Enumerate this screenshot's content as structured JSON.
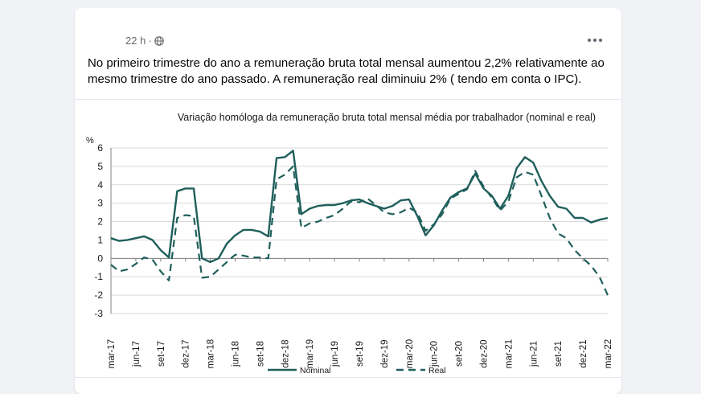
{
  "post": {
    "time": "22 h",
    "separator": "·",
    "privacy_icon": "globe-icon",
    "more_icon": "more-options-icon",
    "text": "No primeiro trimestre do ano a remuneração bruta total mensal aumentou 2,2% relativamente ao mesmo trimestre do ano passado. A remuneração real diminuiu 2% ( tendo em conta o IPC)."
  },
  "colors": {
    "series": "#1f5f5b",
    "grid": "#d9d9d9",
    "text": "#1a1a1a",
    "meta": "#65676b"
  },
  "chart_data": {
    "type": "line",
    "title": "Variação homóloga da remuneração bruta total mensal média por trabalhador (nominal e real)",
    "ylabel": "%",
    "xlabel": "",
    "ylim": [
      -3,
      6
    ],
    "yticks": [
      "6",
      "5",
      "4",
      "3",
      "2",
      "1",
      "0",
      "-1",
      "-2",
      "-3"
    ],
    "grid": true,
    "legend_position": "bottom",
    "x_tick_labels": [
      "mar-17",
      "jun-17",
      "set-17",
      "dez-17",
      "mar-18",
      "jun-18",
      "set-18",
      "dez-18",
      "mar-19",
      "jun-19",
      "set-19",
      "dez-19",
      "mar-20",
      "jun-20",
      "set-20",
      "dez-20",
      "mar-21",
      "jun-21",
      "set-21",
      "dez-21",
      "mar-22"
    ],
    "x": [
      "mar-17",
      "abr-17",
      "mai-17",
      "jun-17",
      "jul-17",
      "ago-17",
      "set-17",
      "out-17",
      "nov-17",
      "dez-17",
      "jan-18",
      "fev-18",
      "mar-18",
      "abr-18",
      "mai-18",
      "jun-18",
      "jul-18",
      "ago-18",
      "set-18",
      "out-18",
      "nov-18",
      "dez-18",
      "jan-19",
      "fev-19",
      "mar-19",
      "abr-19",
      "mai-19",
      "jun-19",
      "jul-19",
      "ago-19",
      "set-19",
      "out-19",
      "nov-19",
      "dez-19",
      "jan-20",
      "fev-20",
      "mar-20",
      "abr-20",
      "mai-20",
      "jun-20",
      "jul-20",
      "ago-20",
      "set-20",
      "out-20",
      "nov-20",
      "dez-20",
      "jan-21",
      "fev-21",
      "mar-21",
      "abr-21",
      "mai-21",
      "jun-21",
      "jul-21",
      "ago-21",
      "set-21",
      "out-21",
      "nov-21",
      "dez-21",
      "jan-22",
      "fev-22",
      "mar-22"
    ],
    "series": [
      {
        "name": "Nominal",
        "style": "solid",
        "values": [
          1.1,
          0.95,
          1.0,
          1.1,
          1.2,
          1.0,
          0.45,
          0.05,
          3.65,
          3.8,
          3.8,
          0.0,
          -0.2,
          0.0,
          0.8,
          1.25,
          1.55,
          1.55,
          1.45,
          1.2,
          5.45,
          5.5,
          5.85,
          2.4,
          2.7,
          2.85,
          2.9,
          2.9,
          3.0,
          3.15,
          3.2,
          3.0,
          2.85,
          2.7,
          2.85,
          3.15,
          3.2,
          2.3,
          1.25,
          1.8,
          2.6,
          3.3,
          3.6,
          3.8,
          4.6,
          3.8,
          3.4,
          2.7,
          3.4,
          4.9,
          5.5,
          5.2,
          4.2,
          3.4,
          2.8,
          2.7,
          2.2,
          2.2,
          1.95,
          2.1,
          2.2
        ]
      },
      {
        "name": "Real",
        "style": "dashed",
        "values": [
          -0.35,
          -0.7,
          -0.6,
          -0.3,
          0.05,
          -0.05,
          -0.7,
          -1.2,
          2.2,
          2.35,
          2.3,
          -1.05,
          -1.0,
          -0.6,
          -0.2,
          0.2,
          0.15,
          0.05,
          0.05,
          0.0,
          4.3,
          4.55,
          5.0,
          1.65,
          1.9,
          2.0,
          2.2,
          2.35,
          2.7,
          3.1,
          3.05,
          3.25,
          2.9,
          2.5,
          2.4,
          2.5,
          2.75,
          2.5,
          1.5,
          1.85,
          2.4,
          3.25,
          3.5,
          3.75,
          4.75,
          3.9,
          3.3,
          2.6,
          3.1,
          4.4,
          4.7,
          4.55,
          3.4,
          2.2,
          1.35,
          1.1,
          0.45,
          0.0,
          -0.4,
          -1.0,
          -2.0
        ]
      }
    ]
  }
}
